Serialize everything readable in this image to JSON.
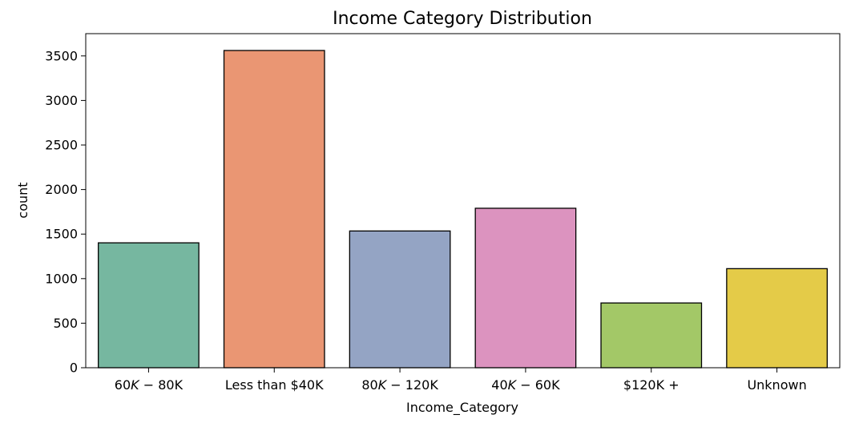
{
  "chart_data": {
    "type": "bar",
    "title": "Income Category Distribution",
    "xlabel": "Income_Category",
    "ylabel": "count",
    "ylim": [
      0,
      3750
    ],
    "yticks": [
      0,
      500,
      1000,
      1500,
      2000,
      2500,
      3000,
      3500
    ],
    "grid": false,
    "legend": "none",
    "categories": [
      "$60K - $80K",
      "Less than $40K",
      "$80K - $120K",
      "$40K - $60K",
      "$120K +",
      "Unknown"
    ],
    "category_tick_labels": [
      [
        {
          "t": "60",
          "i": false
        },
        {
          "t": "K",
          "i": true
        },
        {
          "t": " − 80",
          "i": false
        },
        {
          "t": "K",
          "i": false
        }
      ],
      [
        {
          "t": "Less than $40K",
          "i": false
        }
      ],
      [
        {
          "t": "80",
          "i": false
        },
        {
          "t": "K",
          "i": true
        },
        {
          "t": " − 120",
          "i": false
        },
        {
          "t": "K",
          "i": false
        }
      ],
      [
        {
          "t": "40",
          "i": false
        },
        {
          "t": "K",
          "i": true
        },
        {
          "t": " − 60",
          "i": false
        },
        {
          "t": "K",
          "i": false
        }
      ],
      [
        {
          "t": "$120K +",
          "i": false
        }
      ],
      [
        {
          "t": "Unknown",
          "i": false
        }
      ]
    ],
    "values": [
      1402,
      3561,
      1535,
      1790,
      727,
      1112
    ],
    "colors": [
      "#76b7a0",
      "#ea9673",
      "#94a4c4",
      "#dc93bf",
      "#a3c867",
      "#e4cb48"
    ],
    "edge_color": "#000000"
  }
}
